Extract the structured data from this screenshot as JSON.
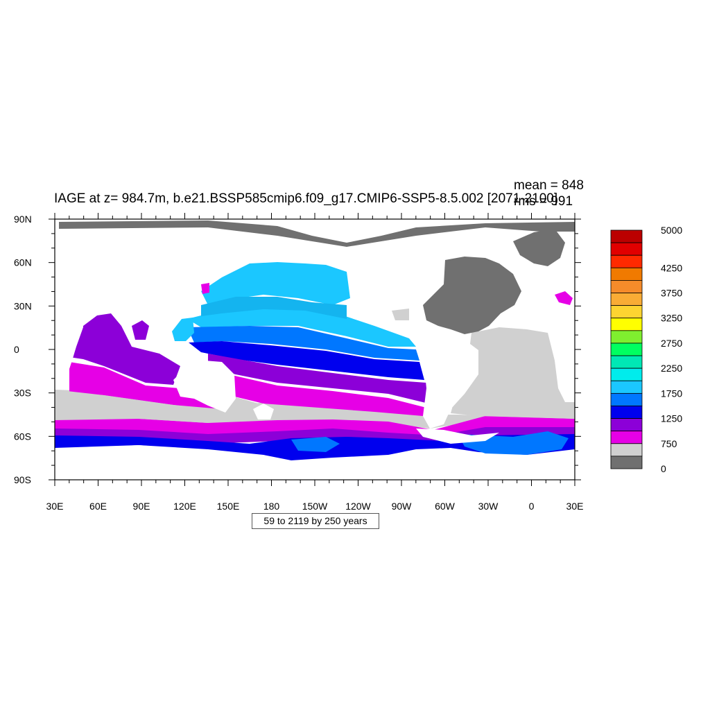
{
  "title": "IAGE at z= 984.7m, b.e21.BSSP585cmip6.f09_g17.CMIP6-SSP5-8.5.002 [2071-2100]",
  "stats": {
    "mean": "mean = 848",
    "rms": "rms = 991"
  },
  "subtitle": "59 to 2119 by 250 years",
  "axes": {
    "lat_ticks": [
      {
        "label": "90N",
        "lat": 90
      },
      {
        "label": "60N",
        "lat": 60
      },
      {
        "label": "30N",
        "lat": 30
      },
      {
        "label": "0",
        "lat": 0
      },
      {
        "label": "30S",
        "lat": -30
      },
      {
        "label": "60S",
        "lat": -60
      },
      {
        "label": "90S",
        "lat": -90
      }
    ],
    "lon_ticks": [
      {
        "label": "30E",
        "lon": 30
      },
      {
        "label": "60E",
        "lon": 60
      },
      {
        "label": "90E",
        "lon": 90
      },
      {
        "label": "120E",
        "lon": 120
      },
      {
        "label": "150E",
        "lon": 150
      },
      {
        "label": "180",
        "lon": 180
      },
      {
        "label": "150W",
        "lon": 210
      },
      {
        "label": "120W",
        "lon": 240
      },
      {
        "label": "90W",
        "lon": 270
      },
      {
        "label": "60W",
        "lon": 300
      },
      {
        "label": "30W",
        "lon": 330
      },
      {
        "label": "0",
        "lon": 360
      },
      {
        "label": "30E",
        "lon": 390
      }
    ],
    "lon_range": [
      30,
      390
    ],
    "lat_range": [
      -90,
      90
    ]
  },
  "colorbar": {
    "colors": [
      "#bb0000",
      "#e10000",
      "#ff2a00",
      "#f07a00",
      "#f58b2a",
      "#f9ac35",
      "#fdd431",
      "#ffff00",
      "#7fef2f",
      "#00ff60",
      "#00e8b5",
      "#00ecec",
      "#1bc7ff",
      "#0077ff",
      "#0000ee",
      "#8c00d8",
      "#e600e6",
      "#d0d0d0",
      "#707070"
    ],
    "labels": [
      {
        "text": "5000",
        "boundary": 0
      },
      {
        "text": "4250",
        "boundary": 3
      },
      {
        "text": "3750",
        "boundary": 5
      },
      {
        "text": "3250",
        "boundary": 7
      },
      {
        "text": "2750",
        "boundary": 9
      },
      {
        "text": "2250",
        "boundary": 11
      },
      {
        "text": "1750",
        "boundary": 13
      },
      {
        "text": "1250",
        "boundary": 15
      },
      {
        "text": "750",
        "boundary": 17
      },
      {
        "text": "0",
        "boundary": 19
      }
    ]
  }
}
